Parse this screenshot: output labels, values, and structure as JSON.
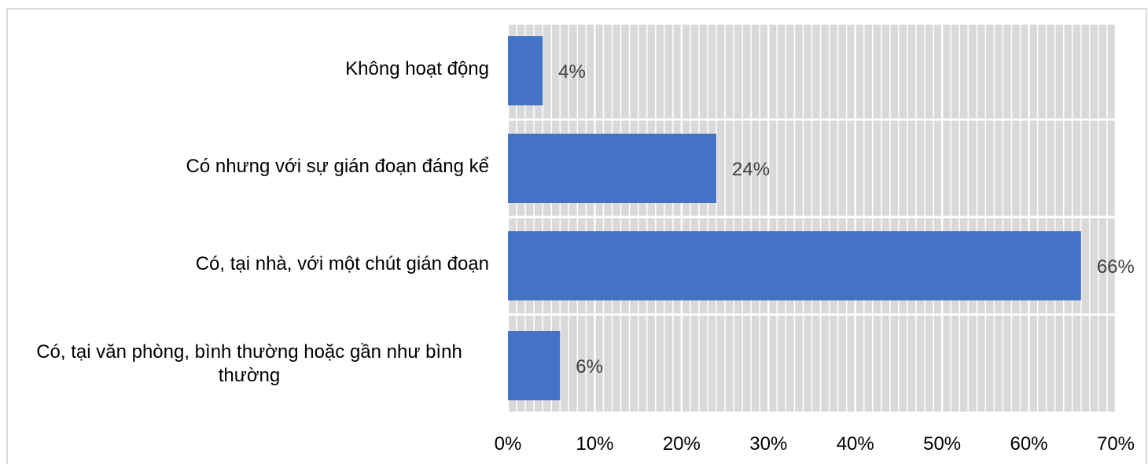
{
  "chart_data": {
    "type": "bar",
    "orientation": "horizontal",
    "title": "",
    "xlabel": "",
    "ylabel": "",
    "categories": [
      "Không hoạt động",
      "Có nhưng với sự gián đoạn đáng kể",
      "Có, tại nhà, với một chút gián đoạn",
      "Có, tại văn phòng, bình thường hoặc gần như bình thường"
    ],
    "values": [
      4,
      24,
      66,
      6
    ],
    "data_labels": [
      "4%",
      "24%",
      "66%",
      "6%"
    ],
    "xlim": [
      0,
      70
    ],
    "x_ticks": [
      0,
      10,
      20,
      30,
      40,
      50,
      60,
      70
    ],
    "x_tick_labels": [
      "0%",
      "10%",
      "20%",
      "30%",
      "40%",
      "50%",
      "60%",
      "70%"
    ],
    "grid": "vertical-dense",
    "legend": "none",
    "colors": {
      "bar": "#4472c4",
      "plot_background": "#d9d9d9",
      "grid": "#ffffff",
      "text": "#000000",
      "data_label": "#404040",
      "frame": "#d9d9d9"
    }
  }
}
